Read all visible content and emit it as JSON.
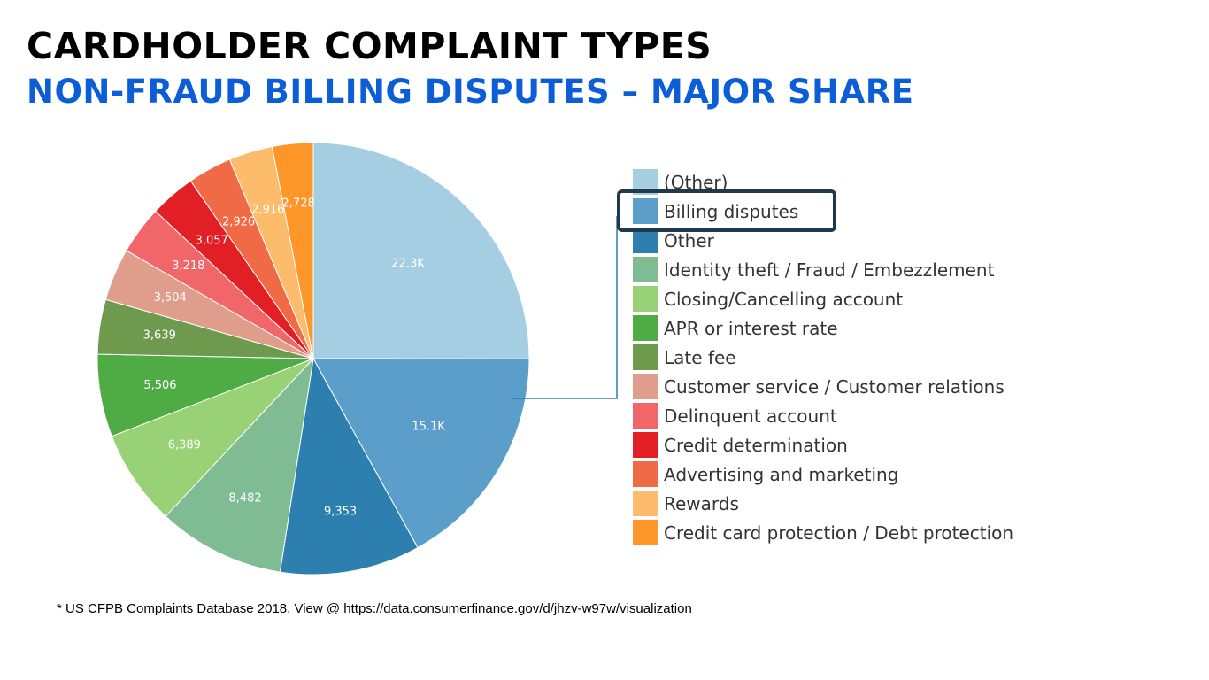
{
  "title": "CARDHOLDER COMPLAINT TYPES",
  "subtitle": "NON-FRAUD BILLING DISPUTES – MAJOR SHARE",
  "footnote": "* US CFPB Complaints Database 2018. View @ https://data.consumerfinance.gov/d/jhzv-w97w/visualization",
  "chart_data": {
    "type": "pie",
    "slices": [
      {
        "label": "(Other)",
        "value": 22300,
        "display": "22.3K",
        "color": "#a6cee3"
      },
      {
        "label": "Billing disputes",
        "value": 15100,
        "display": "15.1K",
        "color": "#5b9ec9",
        "highlighted": true
      },
      {
        "label": "Other",
        "value": 9353,
        "display": "9,353",
        "color": "#2d7fb0"
      },
      {
        "label": "Identity theft / Fraud / Embezzlement",
        "value": 8482,
        "display": "8,482",
        "color": "#7fbc93"
      },
      {
        "label": "Closing/Cancelling account",
        "value": 6389,
        "display": "6,389",
        "color": "#98d176"
      },
      {
        "label": "APR or interest rate",
        "value": 5506,
        "display": "5,506",
        "color": "#4fac45"
      },
      {
        "label": "Late fee",
        "value": 3639,
        "display": "3,639",
        "color": "#6e9a4d"
      },
      {
        "label": "Customer service / Customer relations",
        "value": 3504,
        "display": "3,504",
        "color": "#de9e8b"
      },
      {
        "label": "Delinquent account",
        "value": 3218,
        "display": "3,218",
        "color": "#f16668"
      },
      {
        "label": "Credit determination",
        "value": 3057,
        "display": "3,057",
        "color": "#e31f26"
      },
      {
        "label": "Advertising and marketing",
        "value": 2926,
        "display": "2,926",
        "color": "#f06a45"
      },
      {
        "label": "Rewards",
        "value": 2916,
        "display": "2,916",
        "color": "#fdbb6c"
      },
      {
        "label": "Credit card protection / Debt protection",
        "value": 2728,
        "display": "2,728",
        "color": "#fe962a"
      }
    ],
    "legend_position": "right"
  }
}
